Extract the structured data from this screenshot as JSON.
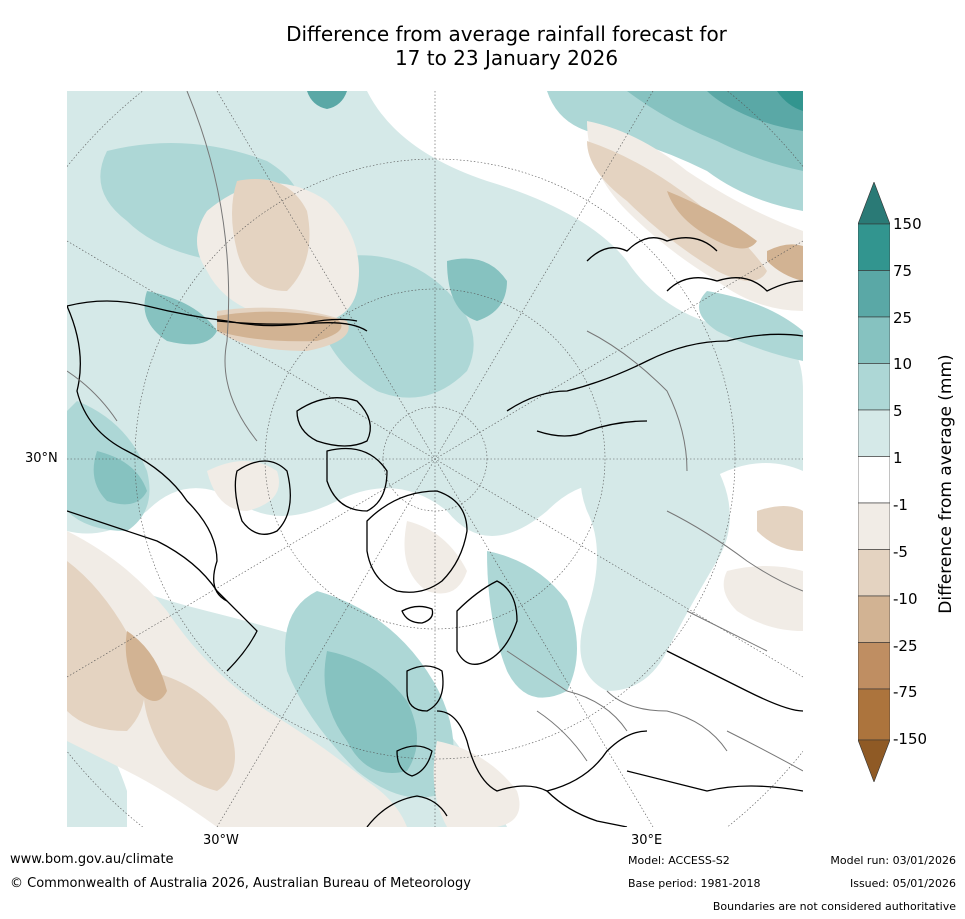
{
  "title": {
    "line1": "Difference from average rainfall forecast for",
    "line2": "17 to 23 January 2026"
  },
  "map": {
    "projection": "north-polar-stereographic",
    "lat_label": "30°N",
    "lon_labels": [
      "30°W",
      "30°E"
    ]
  },
  "legend": {
    "label": "Difference from average (mm)",
    "ticks": [
      "150",
      "75",
      "25",
      "10",
      "5",
      "1",
      "-1",
      "-5",
      "-10",
      "-25",
      "-75",
      "-150"
    ],
    "colors": {
      "over": "#2a7a76",
      "c75_150": "#32958f",
      "c25_75": "#5aa8a6",
      "c10_25": "#86c2c0",
      "c5_10": "#add7d6",
      "c1_5": "#d5e9e8",
      "neutral": "#ffffff",
      "cm1_m5": "#f1ece6",
      "cm5_m10": "#e4d3c1",
      "cm10_m25": "#d2b393",
      "cm25_m75": "#bf8e62",
      "cm75_m150": "#ac743d",
      "under": "#8f5a25"
    }
  },
  "footer": {
    "url": "www.bom.gov.au/climate",
    "copyright": "© Commonwealth of Australia 2026, Australian Bureau of Meteorology",
    "model": "Model: ACCESS-S2",
    "base_period": "Base period: 1981-2018",
    "model_run": "Model run: 03/01/2026",
    "issued": "Issued: 05/01/2026",
    "disclaimer": "Boundaries are not considered authoritative"
  }
}
